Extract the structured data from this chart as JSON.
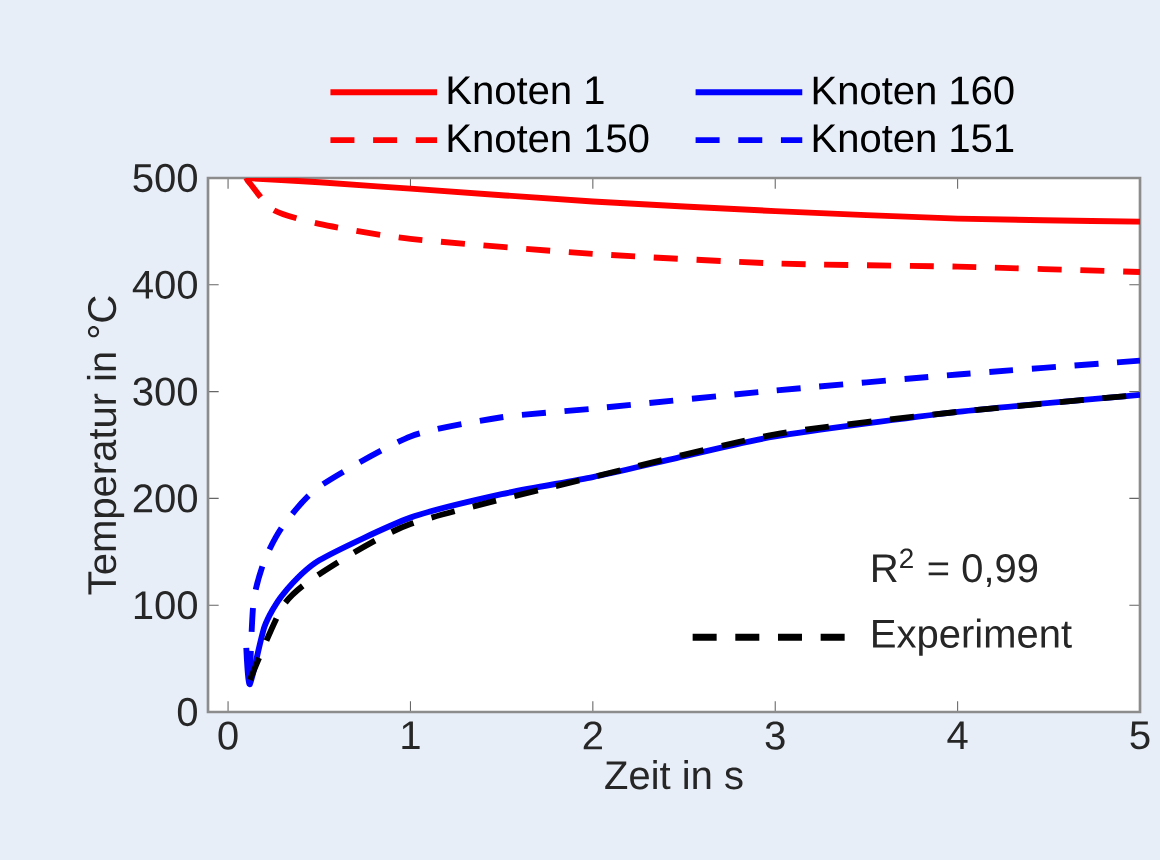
{
  "chart_data": {
    "type": "line",
    "xlabel": "Zeit in s",
    "ylabel": "Temperatur in °C",
    "xlim": [
      -0.11,
      5
    ],
    "ylim": [
      0,
      500
    ],
    "xticks": [
      0,
      1,
      2,
      3,
      4,
      5
    ],
    "yticks": [
      0,
      100,
      200,
      300,
      400,
      500
    ],
    "legend": "top",
    "grid": false,
    "marker": "none",
    "annotations": [
      "R$^{2}$ = 0,99"
    ],
    "series": [
      {
        "name": "Knoten 1",
        "color": "#ff0000",
        "line_style": "solid",
        "x": [
          0.1,
          0.5,
          1,
          2,
          3,
          4,
          5
        ],
        "values": [
          500,
          496,
          490,
          478,
          469,
          462,
          459
        ]
      },
      {
        "name": "Knoten 160",
        "color": "#0000ff",
        "line_style": "solid",
        "x": [
          0.1,
          0.12,
          0.2,
          0.3,
          0.5,
          1,
          1.5,
          2,
          2.44,
          3,
          4,
          5
        ],
        "values": [
          60,
          26,
          80,
          110,
          142,
          182,
          204,
          220,
          237,
          258,
          281,
          297
        ]
      },
      {
        "name": "Knoten 150",
        "color": "#ff0000",
        "line_style": "dashed",
        "x": [
          0.1,
          0.12,
          0.25,
          0.5,
          1,
          2,
          3,
          4,
          5
        ],
        "values": [
          500,
          495,
          470,
          457,
          443,
          429,
          420,
          417,
          412
        ]
      },
      {
        "name": "Knoten 151",
        "color": "#0000ff",
        "line_style": "dashed",
        "x": [
          0.12,
          0.14,
          0.2,
          0.3,
          0.5,
          1,
          1.5,
          2,
          3,
          4,
          5
        ],
        "values": [
          35,
          104,
          142,
          174,
          211,
          258,
          276,
          284,
          301,
          316,
          329
        ]
      },
      {
        "name": "Experiment",
        "color": "#000000",
        "line_style": "dashed",
        "x": [
          0.12,
          0.3,
          0.5,
          1,
          2,
          3,
          4,
          5
        ],
        "values": [
          30,
          99,
          129,
          176,
          220,
          260,
          281,
          297
        ]
      }
    ]
  }
}
